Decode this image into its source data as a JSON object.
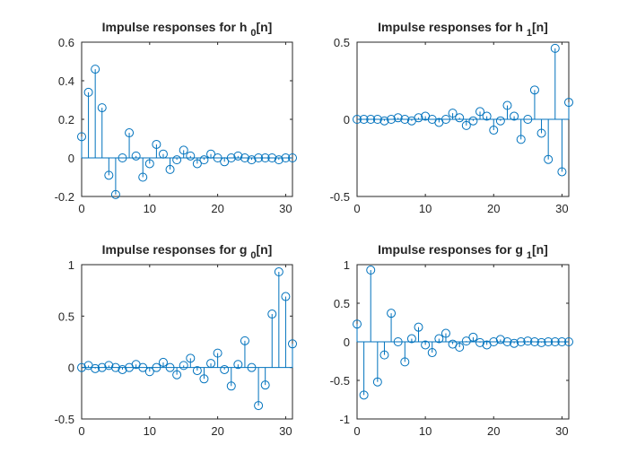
{
  "chart_data": [
    {
      "type": "stem",
      "title": "Impulse responses for h",
      "title_subscript": "0",
      "title_suffix": "[n]",
      "xlim": [
        0,
        31
      ],
      "ylim": [
        -0.2,
        0.6
      ],
      "xticks": [
        "0",
        "10",
        "20",
        "30"
      ],
      "xtick_values": [
        0,
        10,
        20,
        30
      ],
      "yticks": [
        "-0.2",
        "0",
        "0.2",
        "0.4",
        "0.6"
      ],
      "ytick_values": [
        -0.2,
        0,
        0.2,
        0.4,
        0.6
      ],
      "x": [
        0,
        1,
        2,
        3,
        4,
        5,
        6,
        7,
        8,
        9,
        10,
        11,
        12,
        13,
        14,
        15,
        16,
        17,
        18,
        19,
        20,
        21,
        22,
        23,
        24,
        25,
        26,
        27,
        28,
        29,
        30,
        31
      ],
      "values": [
        0.11,
        0.34,
        0.46,
        0.26,
        -0.09,
        -0.19,
        0.0,
        0.13,
        0.01,
        -0.1,
        -0.03,
        0.07,
        0.02,
        -0.06,
        -0.01,
        0.04,
        0.01,
        -0.03,
        -0.01,
        0.02,
        0.0,
        -0.02,
        0.0,
        0.01,
        0.0,
        -0.01,
        0.0,
        0.0,
        0.0,
        -0.01,
        0.0,
        0.0
      ]
    },
    {
      "type": "stem",
      "title": "Impulse responses for h",
      "title_subscript": "1",
      "title_suffix": "[n]",
      "xlim": [
        0,
        31
      ],
      "ylim": [
        -0.5,
        0.5
      ],
      "xticks": [
        "0",
        "10",
        "20",
        "30"
      ],
      "xtick_values": [
        0,
        10,
        20,
        30
      ],
      "yticks": [
        "-0.5",
        "0",
        "0.5"
      ],
      "ytick_values": [
        -0.5,
        0,
        0.5
      ],
      "x": [
        0,
        1,
        2,
        3,
        4,
        5,
        6,
        7,
        8,
        9,
        10,
        11,
        12,
        13,
        14,
        15,
        16,
        17,
        18,
        19,
        20,
        21,
        22,
        23,
        24,
        25,
        26,
        27,
        28,
        29,
        30,
        31
      ],
      "values": [
        0.0,
        0.0,
        0.0,
        0.0,
        -0.01,
        0.0,
        0.01,
        0.0,
        -0.01,
        0.01,
        0.02,
        0.0,
        -0.02,
        0.0,
        0.04,
        0.01,
        -0.04,
        -0.01,
        0.05,
        0.02,
        -0.07,
        -0.01,
        0.09,
        0.02,
        -0.13,
        0.0,
        0.19,
        -0.09,
        -0.26,
        0.46,
        -0.34,
        0.11
      ]
    },
    {
      "type": "stem",
      "title": "Impulse responses for g",
      "title_subscript": "0",
      "title_suffix": "[n]",
      "xlim": [
        0,
        31
      ],
      "ylim": [
        -0.5,
        1
      ],
      "xticks": [
        "0",
        "10",
        "20",
        "30"
      ],
      "xtick_values": [
        0,
        10,
        20,
        30
      ],
      "yticks": [
        "-0.5",
        "0",
        "0.5",
        "1"
      ],
      "ytick_values": [
        -0.5,
        0,
        0.5,
        1
      ],
      "x": [
        0,
        1,
        2,
        3,
        4,
        5,
        6,
        7,
        8,
        9,
        10,
        11,
        12,
        13,
        14,
        15,
        16,
        17,
        18,
        19,
        20,
        21,
        22,
        23,
        24,
        25,
        26,
        27,
        28,
        29,
        30,
        31
      ],
      "values": [
        0.0,
        0.02,
        -0.01,
        0.0,
        0.02,
        0.0,
        -0.02,
        0.0,
        0.03,
        0.0,
        -0.04,
        0.0,
        0.05,
        0.0,
        -0.07,
        0.02,
        0.09,
        -0.03,
        -0.11,
        0.04,
        0.14,
        -0.02,
        -0.18,
        0.03,
        0.26,
        0.0,
        -0.37,
        -0.17,
        0.52,
        0.93,
        0.69,
        0.23
      ]
    },
    {
      "type": "stem",
      "title": "Impulse responses for g",
      "title_subscript": "1",
      "title_suffix": "[n]",
      "xlim": [
        0,
        31
      ],
      "ylim": [
        -1,
        1
      ],
      "xticks": [
        "0",
        "10",
        "20",
        "30"
      ],
      "xtick_values": [
        0,
        10,
        20,
        30
      ],
      "yticks": [
        "-1",
        "-0.5",
        "0",
        "0.5",
        "1"
      ],
      "ytick_values": [
        -1,
        -0.5,
        0,
        0.5,
        1
      ],
      "x": [
        0,
        1,
        2,
        3,
        4,
        5,
        6,
        7,
        8,
        9,
        10,
        11,
        12,
        13,
        14,
        15,
        16,
        17,
        18,
        19,
        20,
        21,
        22,
        23,
        24,
        25,
        26,
        27,
        28,
        29,
        30,
        31
      ],
      "values": [
        0.23,
        -0.69,
        0.93,
        -0.52,
        -0.17,
        0.37,
        0.0,
        -0.26,
        0.04,
        0.19,
        -0.04,
        -0.14,
        0.04,
        0.11,
        -0.03,
        -0.07,
        0.01,
        0.06,
        -0.01,
        -0.04,
        0.0,
        0.03,
        0.0,
        -0.02,
        0.0,
        0.01,
        0.0,
        -0.01,
        0.0,
        0.0,
        0.0,
        0.0
      ]
    }
  ],
  "colors": {
    "stem": "#0072BD",
    "axes": "#262626",
    "background": "#ffffff"
  }
}
